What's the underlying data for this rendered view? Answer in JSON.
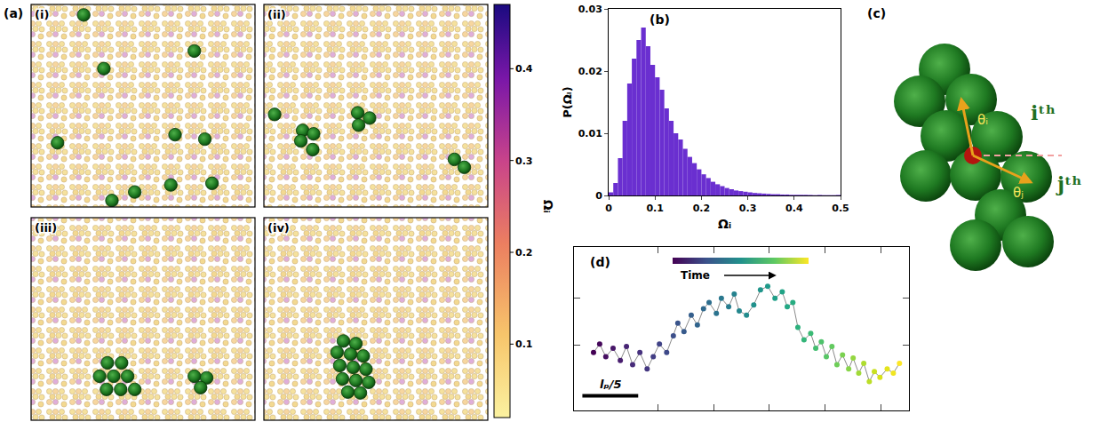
{
  "chart_data": [
    {
      "type": "histogram",
      "panel": "(b)",
      "xlabel": "Ωᵢ",
      "ylabel": "P(Ωᵢ)",
      "color": "#6a2fd0",
      "bins": [
        0,
        0.01,
        0.02,
        0.03,
        0.04,
        0.05,
        0.06,
        0.07,
        0.08,
        0.09,
        0.1,
        0.11,
        0.12,
        0.13,
        0.14,
        0.15,
        0.16,
        0.17,
        0.18,
        0.19,
        0.2,
        0.21,
        0.22,
        0.23,
        0.24,
        0.25,
        0.26,
        0.27,
        0.28,
        0.29,
        0.3,
        0.31,
        0.32,
        0.33,
        0.34,
        0.35,
        0.36,
        0.37,
        0.38,
        0.39,
        0.4,
        0.41,
        0.42,
        0.43,
        0.44,
        0.45,
        0.46,
        0.47,
        0.48,
        0.49,
        0.5
      ],
      "values": [
        0.0005,
        0.002,
        0.006,
        0.012,
        0.018,
        0.022,
        0.025,
        0.027,
        0.024,
        0.021,
        0.019,
        0.017,
        0.014,
        0.012,
        0.01,
        0.009,
        0.0075,
        0.0062,
        0.0052,
        0.0042,
        0.0034,
        0.0028,
        0.0022,
        0.0018,
        0.0015,
        0.0012,
        0.001,
        0.0008,
        0.0007,
        0.0006,
        0.0005,
        0.0004,
        0.00035,
        0.0003,
        0.00025,
        0.0002,
        0.0002,
        0.00015,
        0.00015,
        0.0001,
        0.0001,
        0.0001,
        0.0001,
        8e-05,
        5e-05,
        8e-05,
        5e-05,
        5e-05,
        5e-05,
        8e-05
      ],
      "xlim": [
        0,
        0.5
      ],
      "xticks": [
        0,
        0.1,
        0.2,
        0.3,
        0.4,
        0.5
      ],
      "ylim": [
        0,
        0.03
      ],
      "yticks": [
        0,
        0.01,
        0.02,
        0.03
      ],
      "grid": false
    },
    {
      "type": "scatter",
      "panel": "(d)",
      "marker": "circle",
      "line_style": "solid",
      "tick_labels": false,
      "grid": false,
      "colorbar_label": "Time",
      "scale_bar": {
        "label": "lₚ/5",
        "length": 1.0
      },
      "x": [
        0.35,
        0.46,
        0.57,
        0.7,
        0.83,
        0.94,
        1.05,
        1.18,
        1.31,
        1.42,
        1.53,
        1.66,
        1.78,
        1.86,
        1.97,
        2.1,
        2.21,
        2.32,
        2.42,
        2.55,
        2.64,
        2.77,
        2.87,
        2.96,
        3.09,
        3.22,
        3.34,
        3.47,
        3.6,
        3.73,
        3.82,
        3.92,
        4.01,
        4.12,
        4.24,
        4.33,
        4.43,
        4.52,
        4.62,
        4.71,
        4.81,
        4.92,
        5.0,
        5.1,
        5.19,
        5.29,
        5.38,
        5.48,
        5.61,
        5.72,
        5.83
      ],
      "y": [
        1.24,
        1.42,
        1.15,
        1.33,
        1.07,
        1.37,
        0.98,
        1.24,
        0.89,
        1.15,
        1.42,
        1.24,
        1.6,
        1.87,
        1.69,
        2.04,
        1.83,
        2.18,
        2.31,
        2.08,
        2.4,
        2.22,
        2.49,
        2.13,
        2.04,
        2.26,
        2.58,
        2.66,
        2.4,
        2.54,
        2.22,
        2.31,
        1.78,
        1.51,
        1.65,
        1.33,
        1.47,
        1.15,
        1.37,
        0.98,
        1.19,
        0.89,
        1.12,
        0.8,
        1.01,
        0.62,
        0.83,
        0.71,
        0.89,
        0.8,
        1.01
      ],
      "xlim": [
        0,
        6
      ],
      "xticks": [
        1.5,
        2.5,
        3.5,
        4.5,
        5.5
      ],
      "ylim": [
        0,
        3.5
      ],
      "yticks": [
        1.4,
        2.4
      ]
    }
  ],
  "snapshots": {
    "panel": "(a)",
    "colorbar": {
      "label": "Ωᵢ",
      "range": [
        0.02,
        0.47
      ],
      "ticks": [
        0.1,
        0.2,
        0.3,
        0.4
      ]
    },
    "frames": [
      {
        "label": "(i)",
        "green_particles": [
          [
            0.235,
            0.052
          ],
          [
            0.325,
            0.317
          ],
          [
            0.729,
            0.23
          ],
          [
            0.118,
            0.683
          ],
          [
            0.643,
            0.643
          ],
          [
            0.776,
            0.665
          ],
          [
            0.463,
            0.926
          ],
          [
            0.624,
            0.891
          ],
          [
            0.808,
            0.883
          ],
          [
            0.361,
            0.968
          ]
        ]
      },
      {
        "label": "(ii)",
        "green_particles": [
          [
            0.048,
            0.543
          ],
          [
            0.419,
            0.535
          ],
          [
            0.472,
            0.561
          ],
          [
            0.423,
            0.596
          ],
          [
            0.173,
            0.622
          ],
          [
            0.222,
            0.639
          ],
          [
            0.165,
            0.674
          ],
          [
            0.218,
            0.717
          ],
          [
            0.851,
            0.765
          ],
          [
            0.895,
            0.804
          ]
        ]
      },
      {
        "label": "(iii)",
        "green_particles": [
          [
            0.341,
            0.717
          ],
          [
            0.404,
            0.717
          ],
          [
            0.306,
            0.783
          ],
          [
            0.369,
            0.783
          ],
          [
            0.431,
            0.783
          ],
          [
            0.337,
            0.848
          ],
          [
            0.4,
            0.848
          ],
          [
            0.463,
            0.848
          ],
          [
            0.729,
            0.783
          ],
          [
            0.784,
            0.791
          ],
          [
            0.757,
            0.839
          ]
        ]
      },
      {
        "label": "(iv)",
        "green_particles": [
          [
            0.355,
            0.609
          ],
          [
            0.411,
            0.622
          ],
          [
            0.327,
            0.665
          ],
          [
            0.387,
            0.674
          ],
          [
            0.444,
            0.683
          ],
          [
            0.339,
            0.73
          ],
          [
            0.399,
            0.739
          ],
          [
            0.456,
            0.748
          ],
          [
            0.351,
            0.796
          ],
          [
            0.411,
            0.804
          ],
          [
            0.468,
            0.813
          ],
          [
            0.375,
            0.861
          ],
          [
            0.431,
            0.865
          ]
        ]
      }
    ]
  },
  "diagram": {
    "panel": "(c)",
    "labels": {
      "i": "iᵗʰ",
      "j": "jᵗʰ",
      "theta_i": "θᵢ",
      "theta_j": "θⱼ"
    }
  }
}
